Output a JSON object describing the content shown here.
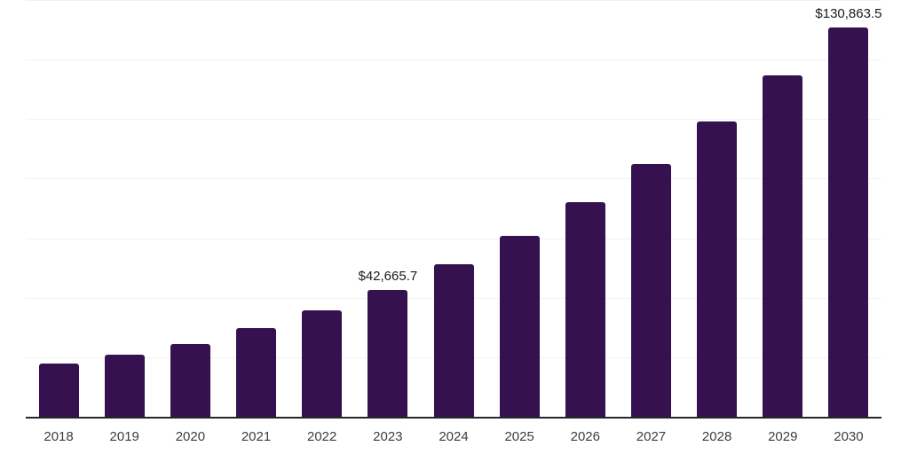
{
  "chart_data": {
    "type": "bar",
    "title": "",
    "xlabel": "",
    "ylabel": "",
    "categories": [
      "2018",
      "2019",
      "2020",
      "2021",
      "2022",
      "2023",
      "2024",
      "2025",
      "2026",
      "2027",
      "2028",
      "2029",
      "2030"
    ],
    "values": [
      17900,
      20900,
      24500,
      29700,
      35700,
      42665.7,
      51100,
      60800,
      72000,
      85000,
      99100,
      114700,
      130863.5
    ],
    "bar_labels": [
      "",
      "",
      "",
      "",
      "",
      "$42,665.7",
      "",
      "",
      "",
      "",
      "",
      "",
      "$130,863.5"
    ],
    "ylim": [
      0,
      140000
    ],
    "gridline_step": 20000,
    "grid": "horizontal",
    "legend": "none",
    "colors": {
      "bar": "#35124F",
      "axis_line": "#262626",
      "gridline": "#F1F1F1",
      "value_label": "#1A1A1A",
      "tick_label": "#3D3D3D",
      "background": "#FFFFFF"
    }
  }
}
